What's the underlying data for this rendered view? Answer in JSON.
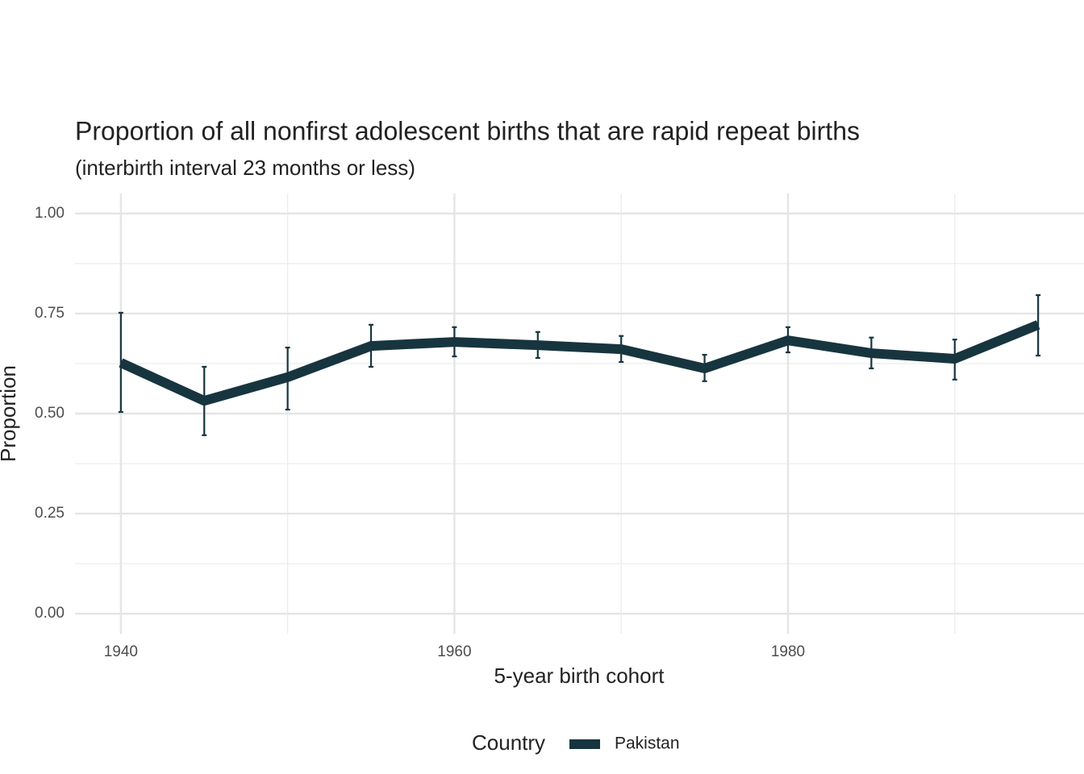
{
  "chart_data": {
    "type": "line",
    "title": "Proportion of all nonfirst adolescent births that are rapid repeat births",
    "subtitle": "(interbirth interval 23 months or less)",
    "x_label": "5-year birth cohort",
    "y_label": "Proportion",
    "legend_title": "Country",
    "legend_position": "bottom",
    "grid": true,
    "x": [
      1940,
      1945,
      1950,
      1955,
      1960,
      1965,
      1970,
      1975,
      1980,
      1985,
      1990,
      1995
    ],
    "series": [
      {
        "name": "Pakistan",
        "color": "#17353f",
        "values": [
          0.627,
          0.532,
          0.591,
          0.669,
          0.679,
          0.671,
          0.661,
          0.613,
          0.683,
          0.651,
          0.637,
          0.722
        ],
        "lower": [
          0.504,
          0.446,
          0.51,
          0.617,
          0.643,
          0.639,
          0.629,
          0.581,
          0.653,
          0.613,
          0.585,
          0.645
        ],
        "upper": [
          0.752,
          0.617,
          0.665,
          0.722,
          0.716,
          0.704,
          0.694,
          0.647,
          0.716,
          0.69,
          0.685,
          0.796
        ]
      }
    ],
    "xlim": [
      1937.25,
      1997.75
    ],
    "xticks": [
      1940,
      1960,
      1980
    ],
    "ylim": [
      -0.05,
      1.05
    ],
    "yticks": [
      {
        "value": 0,
        "label": "0.00"
      },
      {
        "value": 0.25,
        "label": "0.25"
      },
      {
        "value": 0.5,
        "label": "0.50"
      },
      {
        "value": 0.75,
        "label": "0.75"
      },
      {
        "value": 1,
        "label": "1.00"
      }
    ]
  }
}
